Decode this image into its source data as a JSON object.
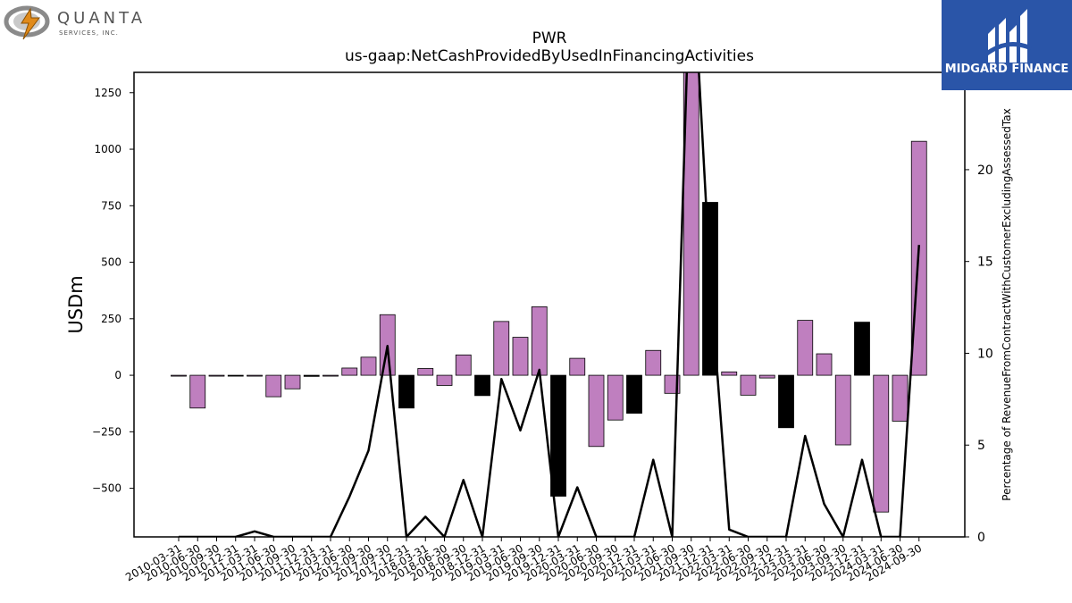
{
  "logos": {
    "left_company": "QUANTA",
    "left_sub": "SERVICES, INC.",
    "right_brand": "MIDGARD FINANCE"
  },
  "chart_data": {
    "type": "bar",
    "title": "PWR",
    "subtitle": "us-gaap:NetCashProvidedByUsedInFinancingActivities",
    "ylabel": "USDm",
    "y2label": "Percentage of RevenueFromContractWithCustomerExcludingAssessedTax",
    "ylim": [
      -715,
      1340
    ],
    "y2lim": [
      0,
      25.3
    ],
    "yticks": [
      -500,
      -250,
      0,
      250,
      500,
      750,
      1000,
      1250
    ],
    "y2ticks": [
      0,
      5,
      10,
      15,
      20,
      25
    ],
    "grid": false,
    "colors": {
      "bar": "#bf7fbf",
      "bar_q4": "#000000",
      "line": "#000000"
    },
    "categories": [
      "2010-03-31",
      "2010-06-30",
      "2010-09-30",
      "2010-12-31",
      "2011-03-31",
      "2011-06-30",
      "2011-09-30",
      "2011-12-31",
      "2012-03-31",
      "2012-06-30",
      "2012-09-30",
      "2017-09-30",
      "2017-12-31",
      "2018-03-31",
      "2018-06-30",
      "2018-09-30",
      "2018-12-31",
      "2019-03-31",
      "2019-06-30",
      "2019-09-30",
      "2019-12-31",
      "2020-03-31",
      "2020-06-30",
      "2020-09-30",
      "2020-12-31",
      "2021-03-31",
      "2021-06-30",
      "2021-09-30",
      "2021-12-31",
      "2022-03-31",
      "2022-06-30",
      "2022-09-30",
      "2022-12-31",
      "2023-03-31",
      "2023-06-30",
      "2023-09-30",
      "2023-12-31",
      "2024-03-31",
      "2024-06-30",
      "2024-09-30"
    ],
    "series": [
      {
        "values": [
          -3,
          -145,
          -3,
          -2,
          -2,
          -95,
          -60,
          -5,
          -2,
          32,
          80,
          268,
          -145,
          30,
          -45,
          90,
          -90,
          238,
          168,
          303,
          -535,
          75,
          -315,
          -198,
          -168,
          110,
          -80,
          1360,
          765,
          15,
          -88,
          -12,
          -232,
          243,
          95,
          -308,
          235,
          -605,
          -203,
          1035
        ],
        "highlight": [
          false,
          false,
          false,
          true,
          false,
          false,
          false,
          true,
          false,
          false,
          false,
          false,
          true,
          false,
          false,
          false,
          true,
          false,
          false,
          false,
          true,
          false,
          false,
          false,
          true,
          false,
          false,
          false,
          true,
          false,
          false,
          false,
          true,
          false,
          false,
          false,
          true,
          false,
          false,
          false
        ]
      },
      {
        "axis": "right",
        "type": "line",
        "values": [
          0,
          0,
          0,
          0,
          0.3,
          0,
          0,
          0,
          0,
          2.2,
          4.7,
          10.4,
          0,
          1.1,
          0,
          3.1,
          0,
          8.6,
          5.8,
          9.1,
          0,
          2.7,
          0,
          0,
          0,
          4.2,
          0,
          33,
          14,
          0.4,
          0,
          0,
          0,
          5.5,
          1.8,
          0,
          4.2,
          0,
          0,
          15.9
        ]
      }
    ]
  }
}
